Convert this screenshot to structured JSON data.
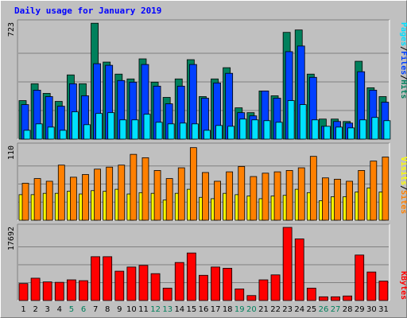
{
  "title": "Daily usage for January 2019",
  "colors": {
    "hits": "#00805c",
    "files": "#0040ff",
    "pages": "#00e0ff",
    "visits": "#ff8000",
    "sites": "#ffff00",
    "kbytes": "#ff0000",
    "weekend_label": "#00805c"
  },
  "chart_data": [
    {
      "type": "bar",
      "panel": "hits-files-pages",
      "categories": [
        "1",
        "2",
        "3",
        "4",
        "5",
        "6",
        "7",
        "8",
        "9",
        "10",
        "11",
        "12",
        "13",
        "14",
        "15",
        "16",
        "17",
        "18",
        "19",
        "20",
        "21",
        "22",
        "23",
        "24",
        "25",
        "26",
        "27",
        "28",
        "29",
        "30",
        "31"
      ],
      "ymax_label": "723",
      "ylim": [
        0,
        723
      ],
      "weekend_days": [
        "5",
        "6",
        "12",
        "13",
        "19",
        "20",
        "26",
        "27"
      ],
      "legend": [
        {
          "name": "Hits",
          "color": "#00805c"
        },
        {
          "name": "Files",
          "color": "#0040ff"
        },
        {
          "name": "Pages",
          "color": "#00e0ff"
        }
      ],
      "legend_separator": "/",
      "series": [
        {
          "name": "Hits",
          "values": [
            240,
            345,
            285,
            235,
            400,
            345,
            722,
            480,
            405,
            375,
            500,
            355,
            260,
            375,
            495,
            265,
            375,
            445,
            195,
            165,
            300,
            270,
            665,
            680,
            405,
            125,
            125,
            110,
            485,
            320,
            265
          ]
        },
        {
          "name": "Files",
          "values": [
            215,
            305,
            265,
            205,
            345,
            270,
            470,
            460,
            365,
            355,
            465,
            330,
            220,
            330,
            465,
            255,
            350,
            410,
            165,
            145,
            300,
            255,
            545,
            580,
            385,
            80,
            110,
            100,
            420,
            305,
            230
          ]
        },
        {
          "name": "Pages",
          "values": [
            55,
            95,
            75,
            55,
            170,
            90,
            160,
            165,
            120,
            120,
            155,
            105,
            95,
            100,
            95,
            55,
            85,
            80,
            125,
            120,
            115,
            105,
            240,
            215,
            120,
            80,
            75,
            70,
            120,
            135,
            115
          ]
        }
      ]
    },
    {
      "type": "bar",
      "panel": "visits-sites",
      "categories": [
        "1",
        "2",
        "3",
        "4",
        "5",
        "6",
        "7",
        "8",
        "9",
        "10",
        "11",
        "12",
        "13",
        "14",
        "15",
        "16",
        "17",
        "18",
        "19",
        "20",
        "21",
        "22",
        "23",
        "24",
        "25",
        "26",
        "27",
        "28",
        "29",
        "30",
        "31"
      ],
      "ymax_label": "110",
      "ylim": [
        0,
        110
      ],
      "legend": [
        {
          "name": "Sites",
          "color": "#ff8000"
        },
        {
          "name": "Visits",
          "color": "#ffff00"
        }
      ],
      "legend_separator": "/",
      "series": [
        {
          "name": "Visits",
          "values": [
            55,
            62,
            58,
            82,
            64,
            68,
            76,
            79,
            82,
            98,
            93,
            74,
            62,
            78,
            108,
            71,
            58,
            72,
            80,
            65,
            70,
            72,
            74,
            78,
            95,
            63,
            61,
            58,
            74,
            88,
            94
          ]
        },
        {
          "name": "Sites",
          "values": [
            38,
            38,
            40,
            40,
            43,
            39,
            44,
            43,
            46,
            39,
            41,
            40,
            30,
            40,
            46,
            34,
            32,
            40,
            38,
            36,
            32,
            36,
            37,
            46,
            41,
            29,
            35,
            35,
            42,
            48,
            42
          ]
        }
      ]
    },
    {
      "type": "bar",
      "panel": "kbytes",
      "categories": [
        "1",
        "2",
        "3",
        "4",
        "5",
        "6",
        "7",
        "8",
        "9",
        "10",
        "11",
        "12",
        "13",
        "14",
        "15",
        "16",
        "17",
        "18",
        "19",
        "20",
        "21",
        "22",
        "23",
        "24",
        "25",
        "26",
        "27",
        "28",
        "29",
        "30",
        "31"
      ],
      "ymax_label": "17692",
      "ylim": [
        0,
        17692
      ],
      "legend": [
        {
          "name": "KBytes",
          "color": "#ff0000"
        }
      ],
      "series": [
        {
          "name": "KBytes",
          "values": [
            4100,
            5400,
            4500,
            4400,
            5000,
            4800,
            10600,
            10600,
            7100,
            8100,
            8500,
            6500,
            3000,
            9200,
            11500,
            6100,
            8100,
            7800,
            2800,
            1200,
            5000,
            6200,
            17692,
            14900,
            3000,
            900,
            900,
            1100,
            11000,
            6900,
            4700
          ]
        }
      ]
    }
  ]
}
